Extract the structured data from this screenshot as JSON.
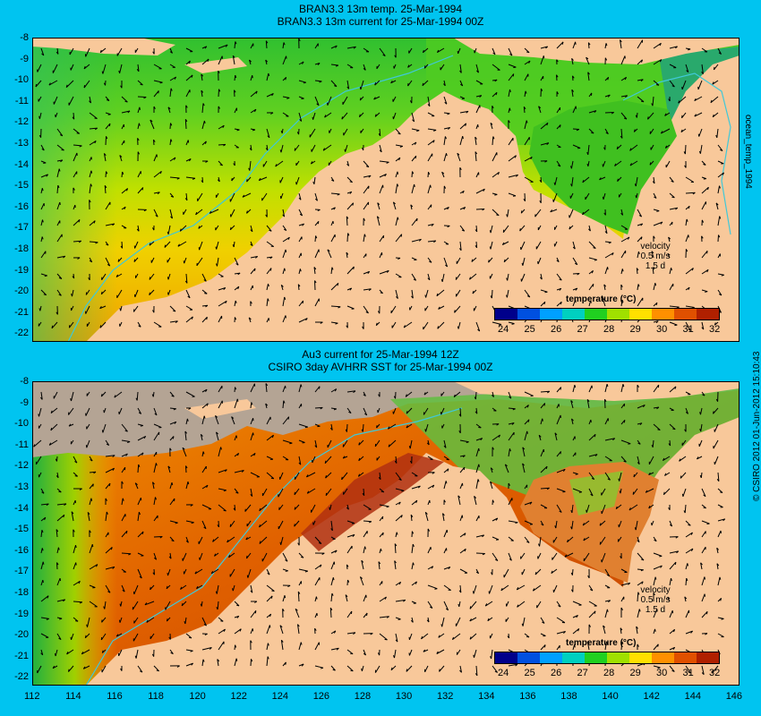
{
  "top": {
    "title1": "BRAN3.3 13m temp. 25-Mar-1994",
    "title2": "BRAN3.3 13m current for 25-Mar-1994 00Z",
    "side_label": "ocean_temp_1994",
    "colorbar_title": "temperature (°C)",
    "velocity": [
      "velocity",
      "0.5 m/s",
      "1.5 d"
    ]
  },
  "bottom": {
    "title1": "Au3 current for 25-Mar-1994 12Z",
    "title2": "CSIRO 3day AVHRR SST for 25-Mar-1994 00Z",
    "side_label": "© CSIRO 2012  01-Jun-2012 15:10:43",
    "colorbar_title": "temperature (°C)",
    "velocity": [
      "velocity",
      "0.5 m/s",
      "1.5 d"
    ]
  },
  "axes": {
    "lat_ticks": [
      "-8",
      "-9",
      "-10",
      "-11",
      "-12",
      "-13",
      "-14",
      "-15",
      "-16",
      "-17",
      "-18",
      "-19",
      "-20",
      "-21",
      "-22"
    ],
    "lon_ticks": [
      "112",
      "114",
      "116",
      "118",
      "120",
      "122",
      "124",
      "126",
      "128",
      "130",
      "132",
      "134",
      "136",
      "138",
      "140",
      "142",
      "144",
      "146"
    ]
  },
  "colorbar": {
    "ticks": [
      "24",
      "25",
      "26",
      "27",
      "28",
      "29",
      "30",
      "31",
      "32"
    ],
    "colors": [
      "#00008b",
      "#0050e0",
      "#00a0ff",
      "#00d0c0",
      "#20d020",
      "#a0e000",
      "#ffe000",
      "#ff9000",
      "#e05000",
      "#b02000"
    ]
  },
  "colors": {
    "background": "#00c4f0",
    "land": "#f8c89a",
    "cloud": "#b4a494",
    "isobath": "#40c8d8"
  }
}
